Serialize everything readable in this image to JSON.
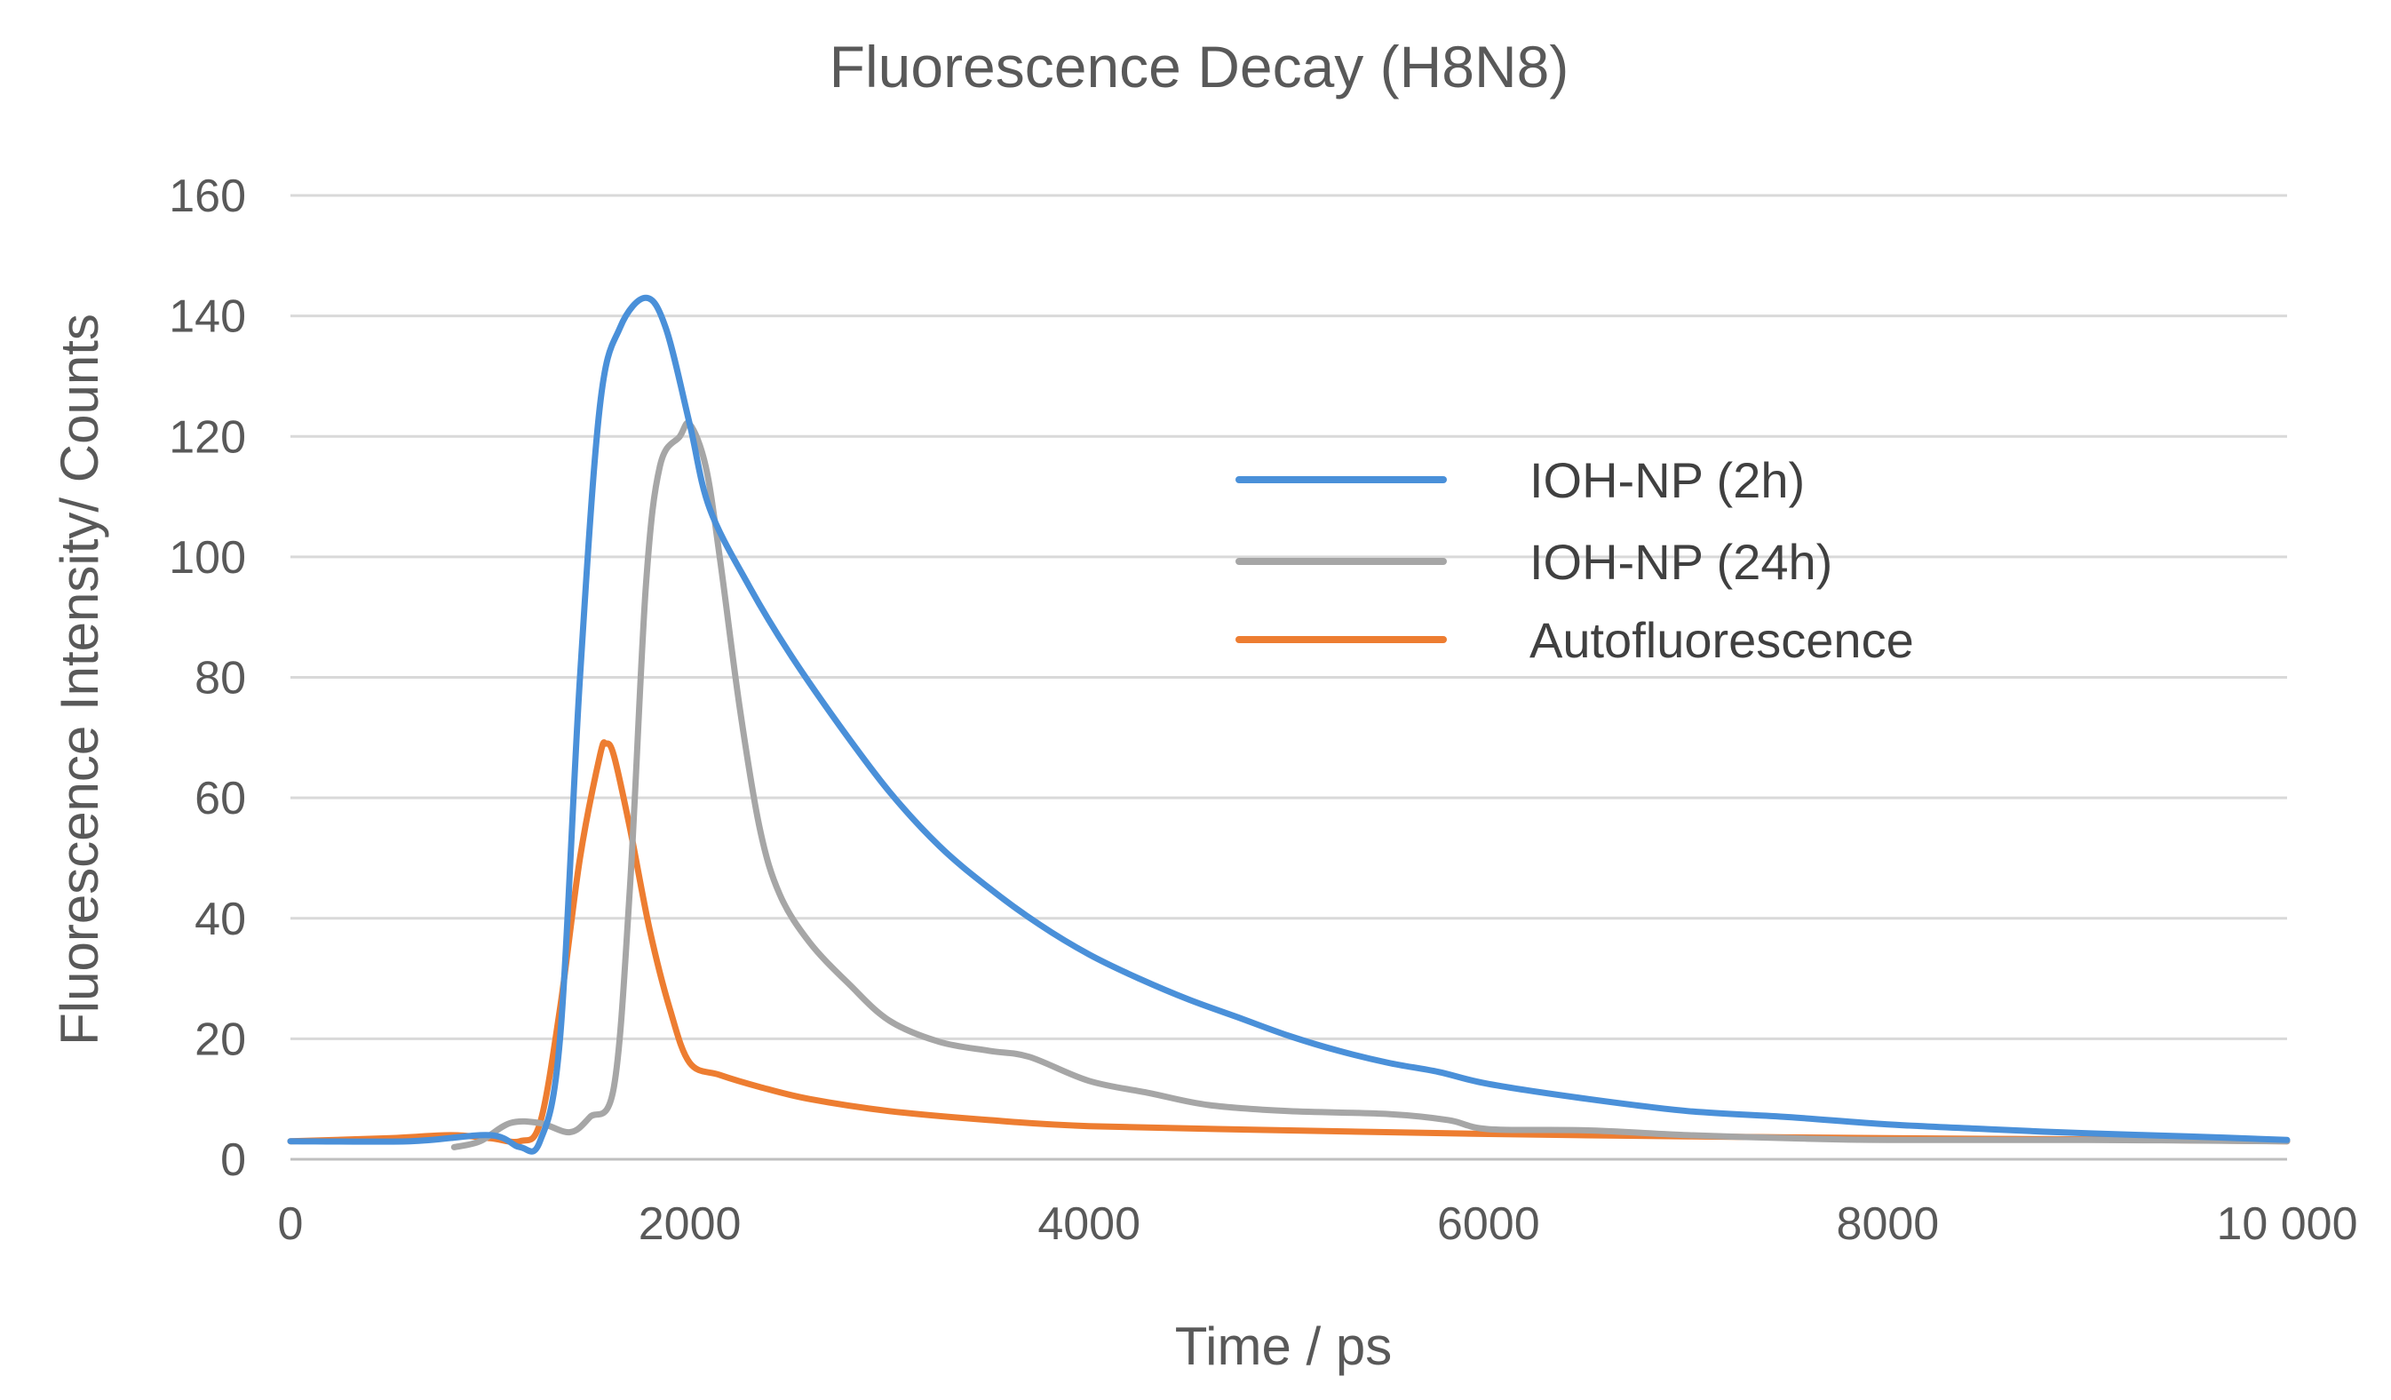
{
  "chart_data": {
    "type": "line",
    "title": "Fluorescence Decay (H8N8)",
    "xlabel": "Time / ps",
    "ylabel": "Fluorescence Intensity/ Counts",
    "xlim": [
      0,
      10000
    ],
    "ylim": [
      0,
      160
    ],
    "xticks": [
      0,
      2000,
      4000,
      6000,
      8000,
      10000
    ],
    "xtick_labels": [
      "0",
      "2000",
      "4000",
      "6000",
      "8000",
      "10 000"
    ],
    "yticks": [
      0,
      20,
      40,
      60,
      80,
      100,
      120,
      140,
      160
    ],
    "ytick_labels": [
      "0",
      "20",
      "40",
      "60",
      "80",
      "100",
      "120",
      "140",
      "160"
    ],
    "grid": "horizontal",
    "legend_position": "right",
    "series": [
      {
        "name": "IOH-NP (2h)",
        "color": "#4a90d9",
        "points": [
          [
            0,
            3
          ],
          [
            600,
            3
          ],
          [
            1000,
            4
          ],
          [
            1150,
            2
          ],
          [
            1250,
            3
          ],
          [
            1350,
            20
          ],
          [
            1450,
            80
          ],
          [
            1550,
            125
          ],
          [
            1650,
            138
          ],
          [
            1780,
            143
          ],
          [
            1880,
            138
          ],
          [
            2000,
            122
          ],
          [
            2100,
            108
          ],
          [
            2300,
            95
          ],
          [
            2500,
            84
          ],
          [
            2750,
            72
          ],
          [
            3000,
            61
          ],
          [
            3250,
            52
          ],
          [
            3500,
            45
          ],
          [
            3750,
            39
          ],
          [
            4000,
            34
          ],
          [
            4250,
            30
          ],
          [
            4500,
            26.5
          ],
          [
            4750,
            23.5
          ],
          [
            5000,
            20.5
          ],
          [
            5250,
            18
          ],
          [
            5500,
            16
          ],
          [
            5750,
            14.5
          ],
          [
            6000,
            12.5
          ],
          [
            6500,
            10
          ],
          [
            7000,
            8
          ],
          [
            7500,
            7
          ],
          [
            8000,
            5.8
          ],
          [
            8500,
            5
          ],
          [
            9000,
            4.3
          ],
          [
            9500,
            3.8
          ],
          [
            10000,
            3.2
          ]
        ]
      },
      {
        "name": "IOH-NP (24h)",
        "color": "#a6a6a6",
        "points": [
          [
            820,
            2
          ],
          [
            950,
            3
          ],
          [
            1100,
            6
          ],
          [
            1250,
            6
          ],
          [
            1400,
            4.5
          ],
          [
            1500,
            7
          ],
          [
            1620,
            12
          ],
          [
            1700,
            45
          ],
          [
            1780,
            95
          ],
          [
            1850,
            115
          ],
          [
            1950,
            120
          ],
          [
            2000,
            122
          ],
          [
            2080,
            115
          ],
          [
            2150,
            100
          ],
          [
            2250,
            75
          ],
          [
            2350,
            55
          ],
          [
            2450,
            44
          ],
          [
            2600,
            36
          ],
          [
            2800,
            29
          ],
          [
            3000,
            23
          ],
          [
            3250,
            19.5
          ],
          [
            3500,
            18
          ],
          [
            3700,
            17
          ],
          [
            4000,
            13
          ],
          [
            4300,
            11
          ],
          [
            4600,
            9
          ],
          [
            5000,
            8
          ],
          [
            5500,
            7.5
          ],
          [
            5800,
            6.5
          ],
          [
            6000,
            5
          ],
          [
            6500,
            4.8
          ],
          [
            7000,
            4
          ],
          [
            7500,
            3.5
          ],
          [
            8000,
            3.2
          ],
          [
            9000,
            3.2
          ],
          [
            10000,
            3
          ]
        ]
      },
      {
        "name": "Autofluorescence",
        "color": "#ed7d31",
        "points": [
          [
            0,
            3
          ],
          [
            500,
            3.5
          ],
          [
            800,
            4
          ],
          [
            1000,
            3.5
          ],
          [
            1150,
            3
          ],
          [
            1250,
            6
          ],
          [
            1350,
            25
          ],
          [
            1450,
            50
          ],
          [
            1550,
            67
          ],
          [
            1580,
            69
          ],
          [
            1620,
            67
          ],
          [
            1700,
            55
          ],
          [
            1800,
            38
          ],
          [
            1900,
            25
          ],
          [
            2000,
            16
          ],
          [
            2150,
            14
          ],
          [
            2350,
            12
          ],
          [
            2600,
            10
          ],
          [
            3000,
            8
          ],
          [
            3500,
            6.5
          ],
          [
            4000,
            5.5
          ],
          [
            5000,
            4.8
          ],
          [
            6000,
            4.2
          ],
          [
            7000,
            3.8
          ],
          [
            8000,
            3.5
          ],
          [
            9000,
            3.3
          ],
          [
            10000,
            3
          ]
        ]
      }
    ]
  }
}
